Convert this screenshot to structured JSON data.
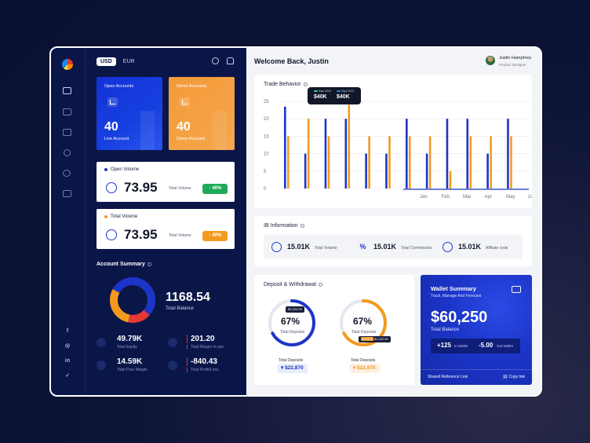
{
  "sidebar": {
    "nav": [
      "dashboard-icon",
      "wallet-icon",
      "list-icon",
      "user-icon",
      "support-icon",
      "card-icon"
    ],
    "social": [
      "f",
      "◎",
      "in",
      "✓"
    ]
  },
  "currency": {
    "usd": "USD",
    "eur": "EUR"
  },
  "cards": {
    "open_title": "Open Accounts",
    "open_value": "40",
    "open_sub": "Live Account",
    "demo_title": "Demo Accounts",
    "demo_value": "40",
    "demo_sub": "Demo Account"
  },
  "open_volume": {
    "label": "Open Volume",
    "value": "73.95",
    "sub": "Total Volume",
    "badge": "40%"
  },
  "total_volume": {
    "label": "Total Volume",
    "value": "73.95",
    "sub": "Total Volume",
    "badge": "40%"
  },
  "account_summary": {
    "title": "Account Summary",
    "balance": "1168.54",
    "balance_label": "Total Balance",
    "equity": "49.79K",
    "equity_label": "Total Equity",
    "margin": "201.20",
    "margin_label": "Total Margin in use",
    "free_margin": "14.59K",
    "free_margin_label": "Total Free Margin",
    "profit": "-840.43",
    "profit_label": "Total Profit/Loss"
  },
  "header": {
    "welcome": "Welcome Back, Justin",
    "user_name": "Justin Hamphrey",
    "user_role": "Product Designer"
  },
  "trade": {
    "title": "Trade Behavior",
    "tooltip": {
      "a_label": "Sept 2023",
      "a_value": "$40K",
      "b_label": "Sept 2023",
      "b_value": "$40K"
    },
    "colors": {
      "blue": "#1c35c8",
      "orange": "#f39a1e"
    }
  },
  "chart_data": {
    "type": "bar",
    "y_ticks": [
      "25",
      "20",
      "15",
      "10",
      "5",
      "0"
    ],
    "x_labels": [
      "Jan",
      "Feb",
      "Mar",
      "Apr",
      "May",
      "Jun"
    ],
    "ylim": [
      0,
      25
    ],
    "series": [
      {
        "values": [
          23.5,
          10,
          20,
          20,
          10,
          10,
          20,
          10,
          20,
          20,
          10,
          20
        ]
      },
      {
        "values": [
          15,
          20,
          15,
          24,
          15,
          15,
          15,
          15,
          5,
          15,
          15,
          15
        ]
      }
    ]
  },
  "ib": {
    "title": "IB Information",
    "items": [
      {
        "value": "15.01K",
        "label": "Total Volume"
      },
      {
        "value": "15.01K",
        "label": "Total Commission"
      },
      {
        "value": "15.01K",
        "label": "Affiliate code"
      }
    ]
  },
  "deposit": {
    "title": "Deposit & Withdrawal",
    "left": {
      "pct": "67%",
      "sub": "Total Deposits",
      "total": "Total Deposits",
      "amount": "$22,870",
      "tip": "$1,222.00",
      "fill": 0.67,
      "color": "#1c35c8"
    },
    "right": {
      "pct": "67%",
      "sub": "Total Deposits",
      "total": "Total Deposits",
      "amount": "$22,870",
      "tip_tag": "TOKEN",
      "tip": "$1,222.00",
      "fill": 0.67,
      "color": "#f39a1e"
    }
  },
  "wallet": {
    "title": "Wallet Summary",
    "subtitle": "Track, Manage And Forecast",
    "value": "$60,250",
    "label": "Total Balance",
    "in_value": "+125",
    "in_label": "In Wallet",
    "out_value": "-5.00",
    "out_label": "Out Wallet",
    "shared": "Shared Reference Link",
    "copy": "Copy link"
  }
}
